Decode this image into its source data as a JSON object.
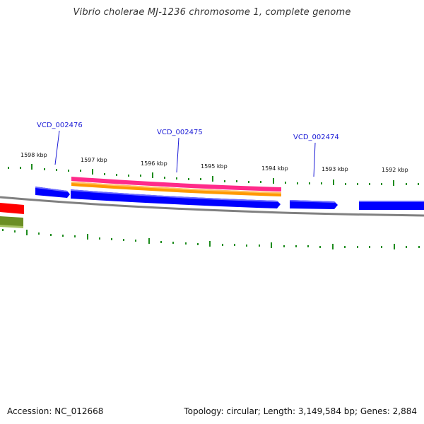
{
  "title": "Vibrio cholerae MJ-1236 chromosome 1, complete genome",
  "accession_text": "Accession: NC_012668",
  "summary_text": "Topology: circular; Length: 3,149,584 bp; Genes: 2,884",
  "scale_labels": [
    "1598 kbp",
    "1597 kbp",
    "1596 kbp",
    "1595 kbp",
    "1594 kbp",
    "1593 kbp",
    "1592 kbp"
  ],
  "gene_labels": [
    "VCD_002476",
    "VCD_002475",
    "VCD_002474"
  ],
  "colors": {
    "gene_label": "#1a1ad6",
    "cds": "#0000ff",
    "backbone": "#808080",
    "tick": "#1e8c1e",
    "magenta": "#ff2a8a",
    "orange": "#ff9900",
    "red": "#ff0000",
    "olive": "#6b8e23"
  }
}
